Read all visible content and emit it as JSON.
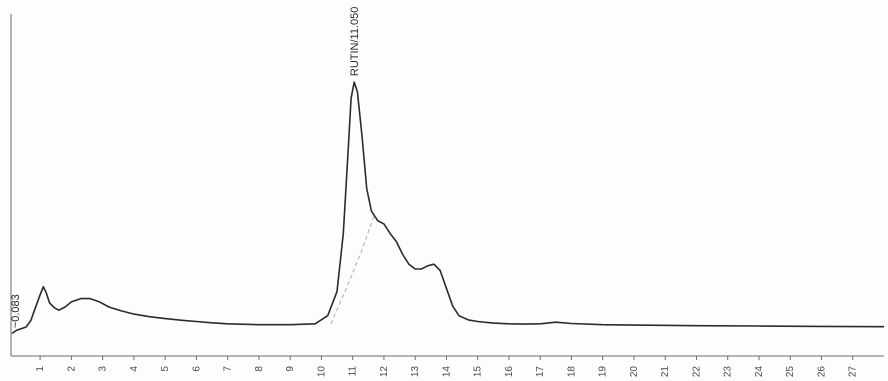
{
  "chart_data": {
    "type": "line",
    "title": "",
    "xlabel": "",
    "ylabel": "",
    "xlim": [
      0.1,
      28
    ],
    "ylim": [
      -0.08,
      1.0
    ],
    "grid": false,
    "x_ticks": [
      1,
      2,
      3,
      4,
      5,
      6,
      7,
      8,
      9,
      10,
      11,
      12,
      13,
      14,
      15,
      16,
      17,
      18,
      19,
      20,
      21,
      22,
      23,
      24,
      25,
      26,
      27
    ],
    "series": [
      {
        "x": [
          0.1,
          0.25,
          0.4,
          0.55,
          0.7,
          0.85,
          1.0,
          1.1,
          1.2,
          1.3,
          1.45,
          1.6,
          1.8,
          2.0,
          2.3,
          2.6,
          2.9,
          3.2,
          3.6,
          4.0,
          4.5,
          5.0,
          5.5,
          6.0,
          6.5,
          7.0,
          8.0,
          9.0,
          9.8,
          10.2,
          10.5,
          10.7,
          10.85,
          10.95,
          11.05,
          11.15,
          11.3,
          11.45,
          11.6,
          11.8,
          12.0,
          12.2,
          12.4,
          12.6,
          12.8,
          13.0,
          13.2,
          13.4,
          13.6,
          13.8,
          14.0,
          14.2,
          14.4,
          14.7,
          15.0,
          15.5,
          16.0,
          16.5,
          17.0,
          17.5,
          18.0,
          19.0,
          20.0,
          22.0,
          24.0,
          26.0,
          28.0
        ],
        "y": [
          -0.01,
          0.0,
          0.005,
          0.01,
          0.03,
          0.07,
          0.11,
          0.135,
          0.115,
          0.085,
          0.07,
          0.062,
          0.072,
          0.088,
          0.098,
          0.098,
          0.088,
          0.072,
          0.06,
          0.05,
          0.042,
          0.036,
          0.031,
          0.027,
          0.023,
          0.02,
          0.017,
          0.017,
          0.02,
          0.045,
          0.12,
          0.3,
          0.55,
          0.72,
          0.77,
          0.74,
          0.6,
          0.44,
          0.37,
          0.34,
          0.33,
          0.3,
          0.275,
          0.235,
          0.205,
          0.19,
          0.19,
          0.2,
          0.205,
          0.185,
          0.13,
          0.075,
          0.045,
          0.032,
          0.027,
          0.022,
          0.02,
          0.019,
          0.02,
          0.025,
          0.021,
          0.017,
          0.016,
          0.014,
          0.013,
          0.012,
          0.011
        ]
      },
      {
        "x": [
          10.3,
          10.8,
          11.3,
          11.7
        ],
        "y": [
          0.02,
          0.13,
          0.25,
          0.36
        ]
      }
    ],
    "annotations": [
      {
        "text": "RUTIN/11.050",
        "x": 11.05,
        "y": 0.77
      },
      {
        "text": "~0.083",
        "x": 0.1,
        "y": 0.0
      }
    ],
    "colors": {
      "trace": "#2b2b2b",
      "baseline": "#b8b8b8",
      "axis": "#6a6a6a"
    }
  }
}
